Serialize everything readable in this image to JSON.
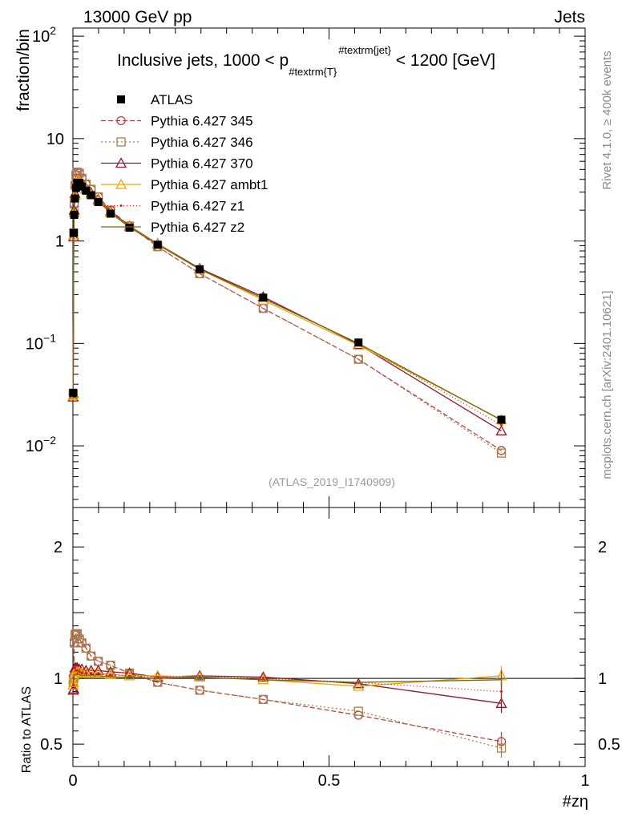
{
  "header": {
    "left": "13000 GeV pp",
    "right": "Jets",
    "side_top": "Rivet 4.1.0, ≥ 400k events",
    "side_bottom": "mcplots.cern.ch [arXiv:2401.10621]",
    "analysis_id": "(ATLAS_2019_I1740909)"
  },
  "chart_data": {
    "type": "line",
    "title_parts": [
      "Inclusive jets, 1000 < p",
      "#textrm{T}",
      "#textrm{jet}",
      " < 1200 [GeV]"
    ],
    "title": "Inclusive jets, 1000 < p_{#textrm{T}}^{#textrm{jet}} < 1200 [GeV]",
    "ylabel": "fraction/bin",
    "ratio_ylabel": "Ratio to ATLAS",
    "xlabel": "#zη",
    "xlim": [
      0,
      1
    ],
    "ylim_log": [
      0.0025,
      120
    ],
    "ratio_ylim": [
      0.33,
      2.3
    ],
    "x_ticks": [
      {
        "v": 0,
        "t": "0"
      },
      {
        "v": 0.5,
        "t": "0.5"
      },
      {
        "v": 1,
        "t": "1"
      }
    ],
    "y_ticks": [
      {
        "v": 0.01,
        "base": "10",
        "exp": "−2"
      },
      {
        "v": 0.1,
        "base": "10",
        "exp": "−1"
      },
      {
        "v": 1,
        "base": "1",
        "exp": ""
      },
      {
        "v": 10,
        "base": "10",
        "exp": ""
      },
      {
        "v": 100,
        "base": "10",
        "exp": "2"
      }
    ],
    "ratio_ticks": [
      {
        "v": 0.5,
        "t": "0.5"
      },
      {
        "v": 1,
        "t": "1"
      },
      {
        "v": 2,
        "t": "2"
      }
    ],
    "x": [
      0.0005,
      0.0015,
      0.0025,
      0.004,
      0.006,
      0.0085,
      0.0125,
      0.0175,
      0.0255,
      0.0355,
      0.0495,
      0.0735,
      0.1105,
      0.1655,
      0.2475,
      0.3715,
      0.5575,
      0.8365
    ],
    "data": {
      "name": "ATLAS",
      "values": [
        0.033,
        1.2,
        1.8,
        2.6,
        3.3,
        3.7,
        3.7,
        3.4,
        3.1,
        2.8,
        2.4,
        1.85,
        1.35,
        0.92,
        0.53,
        0.28,
        0.102,
        0.018
      ]
    },
    "ratio_x": [
      0.0005,
      0.0015,
      0.0025,
      0.004,
      0.006,
      0.0085,
      0.0125,
      0.0175,
      0.0255,
      0.0355,
      0.0495,
      0.0735,
      0.1105,
      0.1655,
      0.2475,
      0.3715,
      0.5575,
      0.8365
    ],
    "series": [
      {
        "name": "Pythia 6.427 345",
        "color": "#b5424d",
        "dash": "6,3",
        "marker": "circle",
        "values": [
          0.032,
          1.2,
          2.3,
          3.5,
          4.4,
          4.7,
          4.6,
          4.1,
          3.6,
          3.2,
          2.7,
          2.0,
          1.4,
          0.88,
          0.48,
          0.22,
          0.07,
          0.009
        ],
        "ratio": [
          0.97,
          1.0,
          1.27,
          1.33,
          1.34,
          1.34,
          1.3,
          1.27,
          1.23,
          1.17,
          1.13,
          1.1,
          1.04,
          0.97,
          0.91,
          0.84,
          0.72,
          0.52
        ]
      },
      {
        "name": "Pythia 6.427 346",
        "color": "#a5824a",
        "dash": "2,3",
        "marker": "square",
        "values": [
          0.032,
          1.2,
          2.3,
          3.5,
          4.4,
          4.7,
          4.6,
          4.1,
          3.6,
          3.2,
          2.7,
          2.0,
          1.4,
          0.88,
          0.48,
          0.22,
          0.07,
          0.0085
        ],
        "ratio": [
          0.97,
          1.0,
          1.27,
          1.33,
          1.34,
          1.34,
          1.3,
          1.27,
          1.23,
          1.17,
          1.13,
          1.1,
          1.04,
          0.97,
          0.91,
          0.84,
          0.75,
          0.47
        ]
      },
      {
        "name": "Pythia 6.427 370",
        "color": "#8b1a2d",
        "dash": "",
        "marker": "triangle",
        "values": [
          0.03,
          1.1,
          2.0,
          2.9,
          3.6,
          4.0,
          3.95,
          3.6,
          3.25,
          2.95,
          2.55,
          1.95,
          1.4,
          0.94,
          0.54,
          0.285,
          0.098,
          0.014
        ],
        "ratio": [
          0.91,
          0.92,
          1.05,
          1.08,
          1.08,
          1.08,
          1.07,
          1.07,
          1.06,
          1.06,
          1.06,
          1.05,
          1.04,
          1.01,
          1.02,
          1.01,
          0.96,
          0.81
        ]
      },
      {
        "name": "Pythia 6.427 ambt1",
        "color": "#f0a30a",
        "dash": "",
        "marker": "triangle",
        "values": [
          0.031,
          1.15,
          1.9,
          2.8,
          3.5,
          3.95,
          3.9,
          3.5,
          3.2,
          2.85,
          2.5,
          1.9,
          1.38,
          0.93,
          0.53,
          0.265,
          0.096,
          0.018
        ],
        "ratio": [
          0.95,
          0.97,
          1.02,
          1.05,
          1.05,
          1.05,
          1.05,
          1.04,
          1.04,
          1.04,
          1.04,
          1.03,
          1.02,
          1.02,
          1.01,
          0.99,
          0.94,
          1.02
        ]
      },
      {
        "name": "Pythia 6.427 z1",
        "color": "#d21e1e",
        "dash": "1,3",
        "marker": "dot",
        "values": [
          0.031,
          1.2,
          1.95,
          2.85,
          3.6,
          3.9,
          3.85,
          3.5,
          3.2,
          2.9,
          2.5,
          1.9,
          1.38,
          0.93,
          0.53,
          0.28,
          0.1,
          0.016
        ],
        "ratio": [
          0.95,
          1.0,
          1.08,
          1.08,
          1.06,
          1.06,
          1.05,
          1.04,
          1.04,
          1.04,
          1.04,
          1.03,
          1.02,
          1.01,
          1.01,
          1.0,
          0.97,
          0.9
        ]
      },
      {
        "name": "Pythia 6.427 z2",
        "color": "#6b6b12",
        "dash": "",
        "marker": "none",
        "values": [
          0.031,
          1.2,
          1.9,
          2.75,
          3.45,
          3.85,
          3.8,
          3.45,
          3.15,
          2.85,
          2.45,
          1.88,
          1.36,
          0.92,
          0.53,
          0.275,
          0.1,
          0.0178
        ],
        "ratio": [
          0.95,
          1.0,
          1.02,
          1.03,
          1.03,
          1.03,
          1.03,
          1.02,
          1.02,
          1.02,
          1.02,
          1.01,
          1.01,
          1.0,
          1.01,
          0.99,
          0.97,
          0.99
        ]
      }
    ]
  }
}
